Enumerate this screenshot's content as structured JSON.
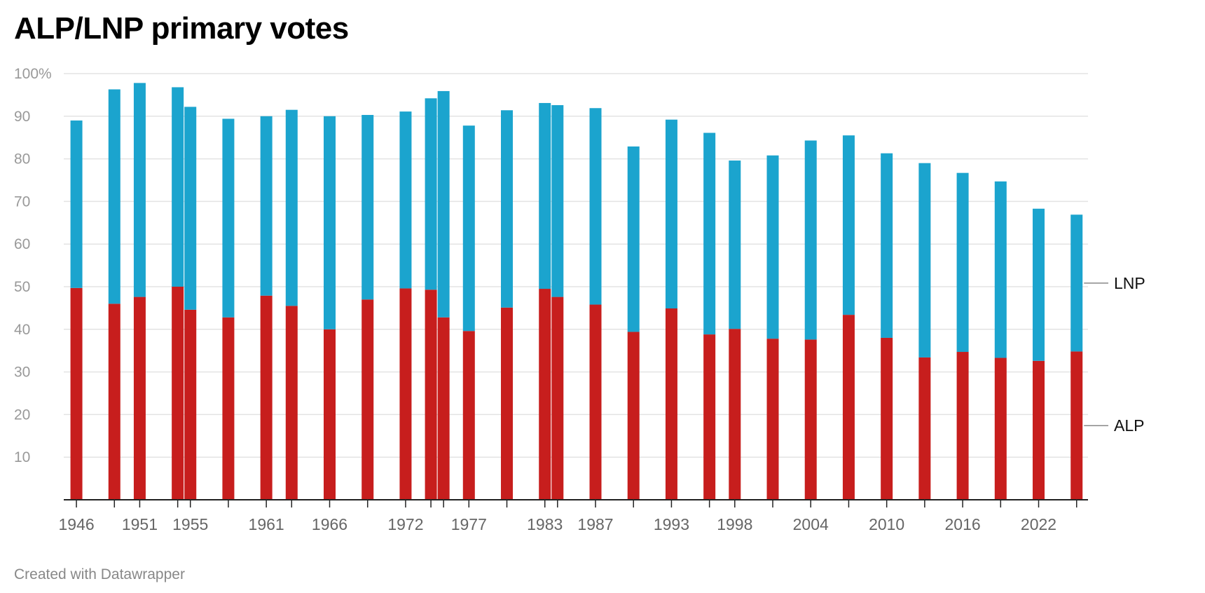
{
  "title": "ALP/LNP primary votes",
  "footer": "Created with Datawrapper",
  "colors": {
    "ALP": "#c71e1d",
    "LNP": "#1ba4ce",
    "grid": "#e3e3e3",
    "axis": "#222222"
  },
  "chart_data": {
    "type": "bar",
    "stacked": true,
    "ylim": [
      0,
      100
    ],
    "y_ticks": [
      10,
      20,
      30,
      40,
      50,
      60,
      70,
      80,
      90,
      100
    ],
    "y_tick_labels": [
      "10",
      "20",
      "30",
      "40",
      "50",
      "60",
      "70",
      "80",
      "90",
      "100%"
    ],
    "x_tick_labels": [
      "1946",
      "1951",
      "1955",
      "1961",
      "1966",
      "1972",
      "1977",
      "1983",
      "1987",
      "1993",
      "1998",
      "2004",
      "2010",
      "2016",
      "2022"
    ],
    "x_ticks": [
      1946,
      1951,
      1955,
      1961,
      1966,
      1972,
      1977,
      1983,
      1987,
      1993,
      1998,
      2004,
      2010,
      2016,
      2022
    ],
    "x_range": [
      1945.0,
      2025.9
    ],
    "grid": true,
    "legend": "direct labels on right",
    "categories": [
      1946,
      1949,
      1951,
      1954,
      1955,
      1958,
      1961,
      1963,
      1966,
      1969,
      1972,
      1974,
      1975,
      1977,
      1980,
      1983,
      1984,
      1987,
      1990,
      1993,
      1996,
      1998,
      2001,
      2004,
      2007,
      2010,
      2013,
      2016,
      2019,
      2022,
      2025
    ],
    "series": [
      {
        "name": "ALP",
        "values": [
          49.7,
          46.0,
          47.6,
          50.0,
          44.6,
          42.8,
          47.9,
          45.5,
          40.0,
          47.0,
          49.6,
          49.3,
          42.8,
          39.6,
          45.1,
          49.5,
          47.6,
          45.8,
          39.4,
          44.9,
          38.8,
          40.1,
          37.8,
          37.6,
          43.4,
          38.0,
          33.4,
          34.7,
          33.3,
          32.6,
          34.8
        ]
      },
      {
        "name": "LNP",
        "values": [
          39.3,
          50.3,
          50.2,
          46.8,
          47.6,
          46.6,
          42.1,
          46.0,
          50.0,
          43.3,
          41.5,
          44.9,
          53.1,
          48.2,
          46.3,
          43.6,
          45.0,
          46.1,
          43.5,
          44.3,
          47.3,
          39.5,
          43.0,
          46.7,
          42.1,
          43.3,
          45.6,
          42.0,
          41.4,
          35.7,
          32.1
        ]
      }
    ]
  }
}
